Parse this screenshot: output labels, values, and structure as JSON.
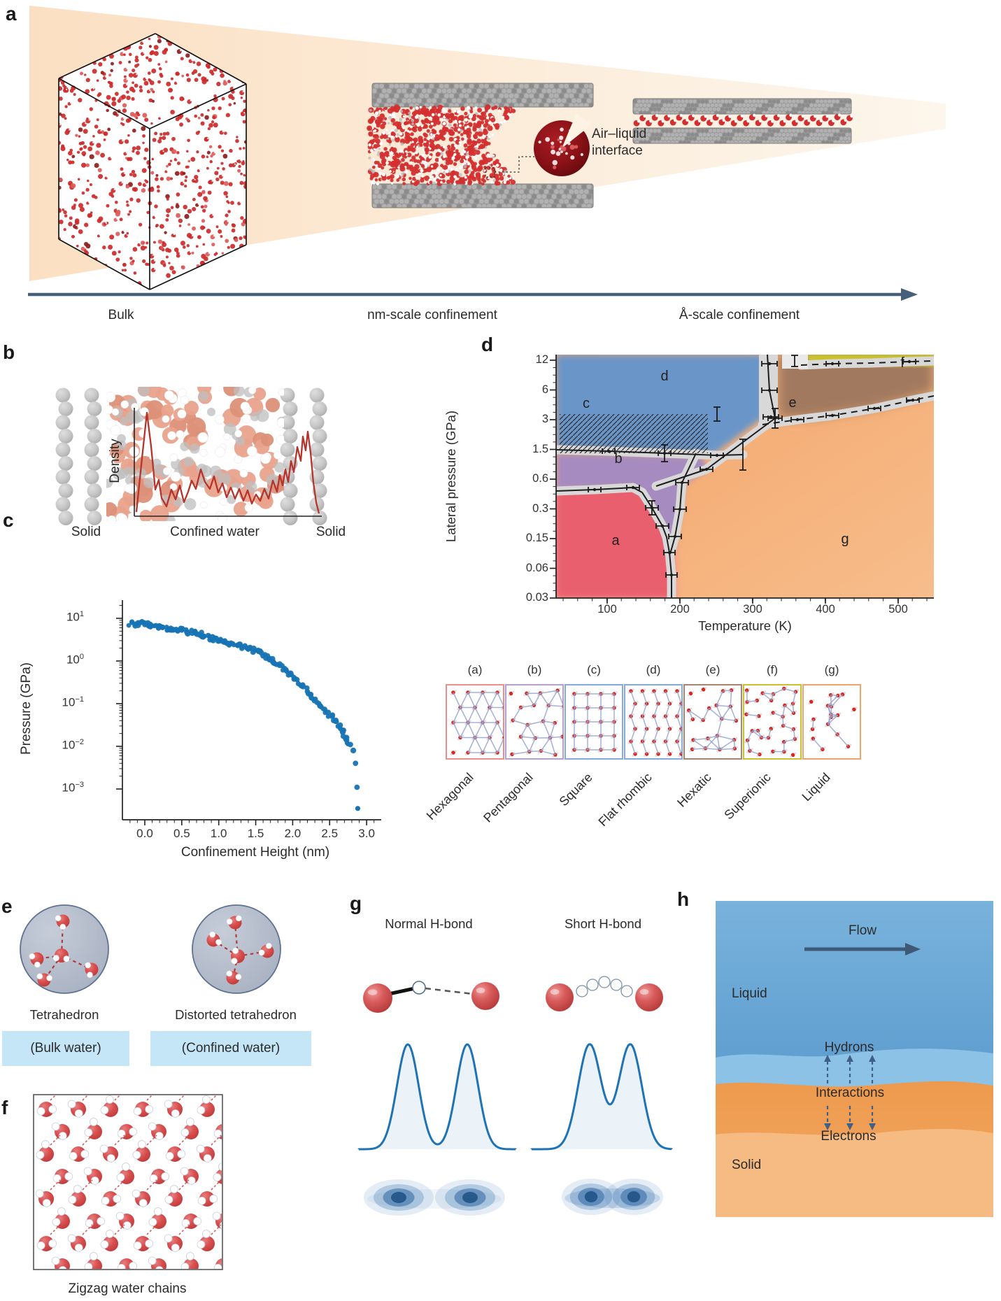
{
  "figure": {
    "background": "#ffffff"
  },
  "panel_letters": {
    "a": "a",
    "b": "b",
    "c": "c",
    "d": "d",
    "e": "e",
    "f": "f",
    "g": "g",
    "h": "h"
  },
  "panel_a": {
    "bulk_label": "Bulk",
    "nm_label": "nm-scale confinement",
    "angstrom_label": "Å-scale confinement",
    "interface_line1": "Air–liquid",
    "interface_line2": "interface"
  },
  "panel_b": {
    "density_label": "Density",
    "solid_left": "Solid",
    "confined_label": "Confined water",
    "solid_right": "Solid",
    "density_profile_relative": [
      0.05,
      0.95,
      0.3,
      0.15,
      0.35,
      0.2,
      0.28,
      0.42,
      0.25,
      0.38,
      0.3,
      0.45,
      0.33,
      0.28,
      0.5,
      0.42,
      0.55,
      0.75,
      0.25,
      0.02
    ]
  },
  "panel_e": {
    "tetra_label": "Tetrahedron",
    "tetra_sub": "(Bulk water)",
    "distorted_label": "Distorted tetrahedron",
    "distorted_sub": "(Confined water)",
    "highlight_color": "#c5e6f6"
  },
  "panel_f": {
    "caption": "Zigzag water chains"
  },
  "panel_g": {
    "normal_label": "Normal H-bond",
    "short_label": "Short H-bond"
  },
  "panel_h": {
    "flow": "Flow",
    "liquid": "Liquid",
    "hydrons": "Hydrons",
    "interactions": "Interactions",
    "electrons": "Electrons",
    "solid": "Solid"
  },
  "chart_data": [
    {
      "type": "scatter",
      "panel": "c",
      "xlabel": "Confinement Height (nm)",
      "ylabel": "Pressure (GPa)",
      "x_ticks": [
        "0.0",
        "0.5",
        "1.0",
        "1.5",
        "2.0",
        "2.5",
        "3.0"
      ],
      "x_tick_values": [
        0.0,
        0.5,
        1.0,
        1.5,
        2.0,
        2.5,
        3.0
      ],
      "y_tick_exponents": [
        "1",
        "0",
        "−1",
        "−2",
        "−3"
      ],
      "y_tick_log10": [
        1,
        0,
        -1,
        -2,
        -3
      ],
      "xlim": [
        -0.3,
        3.2
      ],
      "ylim_log10": [
        -3.7,
        1.4
      ],
      "grid": false,
      "series": [
        {
          "name": "pressure vs confinement height",
          "color": "#1774b4",
          "trend_points": [
            [
              -0.2,
              7.5
            ],
            [
              -0.12,
              7.0
            ],
            [
              -0.05,
              7.8
            ],
            [
              0.0,
              7.2
            ],
            [
              0.08,
              6.8
            ],
            [
              0.15,
              6.2
            ],
            [
              0.22,
              6.6
            ],
            [
              0.3,
              5.8
            ],
            [
              0.38,
              5.4
            ],
            [
              0.45,
              5.6
            ],
            [
              0.52,
              5.0
            ],
            [
              0.6,
              4.6
            ],
            [
              0.68,
              4.8
            ],
            [
              0.75,
              4.2
            ],
            [
              0.82,
              3.9
            ],
            [
              0.9,
              3.4
            ],
            [
              0.98,
              3.1
            ],
            [
              1.05,
              2.9
            ],
            [
              1.12,
              2.7
            ],
            [
              1.2,
              2.5
            ],
            [
              1.28,
              2.3
            ],
            [
              1.35,
              2.1
            ],
            [
              1.42,
              1.9
            ],
            [
              1.5,
              1.7
            ],
            [
              1.58,
              1.45
            ],
            [
              1.65,
              1.25
            ],
            [
              1.72,
              1.1
            ],
            [
              1.8,
              0.85
            ],
            [
              1.88,
              0.65
            ],
            [
              1.95,
              0.52
            ],
            [
              2.02,
              0.42
            ],
            [
              2.1,
              0.3
            ],
            [
              2.18,
              0.22
            ],
            [
              2.25,
              0.16
            ],
            [
              2.32,
              0.12
            ],
            [
              2.4,
              0.085
            ],
            [
              2.48,
              0.06
            ],
            [
              2.55,
              0.045
            ],
            [
              2.62,
              0.032
            ],
            [
              2.68,
              0.022
            ],
            [
              2.73,
              0.016
            ],
            [
              2.78,
              0.011
            ],
            [
              2.82,
              0.008
            ],
            [
              2.85,
              0.004
            ],
            [
              2.87,
              0.0011
            ],
            [
              2.88,
              0.00035
            ]
          ]
        }
      ]
    },
    {
      "type": "phase_diagram",
      "panel": "d",
      "xlabel": "Temperature (K)",
      "ylabel": "Lateral pressure (GPa)",
      "x_ticks": [
        "100",
        "200",
        "300",
        "400",
        "500"
      ],
      "y_ticks": [
        "12",
        "6",
        "3",
        "1.5",
        "0.6",
        "0.3",
        "0.15",
        "0.06",
        "0.03"
      ],
      "x_range_K": [
        30,
        550
      ],
      "regions": [
        {
          "key": "a",
          "phase": "Hexagonal",
          "color": "#e95f6d"
        },
        {
          "key": "b",
          "phase": "Pentagonal",
          "color": "#a58bc0"
        },
        {
          "key": "c",
          "phase": "Square",
          "color": "hatched"
        },
        {
          "key": "d",
          "phase": "Flat rhombic",
          "color": "#6b95c8"
        },
        {
          "key": "e",
          "phase": "Hexatic",
          "color": "#a1795e"
        },
        {
          "key": "f",
          "phase": "Superionic",
          "color": "#c9c12f"
        },
        {
          "key": "g",
          "phase": "Liquid",
          "color": "#f4aa6f"
        }
      ],
      "structures": [
        {
          "label": "(a)",
          "name": "Hexagonal",
          "border": "#e98d8d",
          "pattern": "hexagonal"
        },
        {
          "label": "(b)",
          "name": "Pentagonal",
          "border": "#b5a0cf",
          "pattern": "pentagonal"
        },
        {
          "label": "(c)",
          "name": "Square",
          "border": "#85abd6",
          "pattern": "square"
        },
        {
          "label": "(d)",
          "name": "Flat rhombic",
          "border": "#85abd6",
          "pattern": "rhombic"
        },
        {
          "label": "(e)",
          "name": "Hexatic",
          "border": "#a98570",
          "pattern": "hexatic"
        },
        {
          "label": "(f)",
          "name": "Superionic",
          "border": "#c9c12f",
          "pattern": "superionic"
        },
        {
          "label": "(g)",
          "name": "Liquid",
          "border": "#f0a468",
          "pattern": "liquid"
        }
      ]
    }
  ],
  "colors": {
    "water_red": "#d42f2f",
    "accent_navy": "#46607c",
    "scatter_blue": "#1774b4",
    "curve_red": "#b5342c",
    "dist_blue": "#1f73b4",
    "wedge_peach": "#fbe0c3"
  }
}
